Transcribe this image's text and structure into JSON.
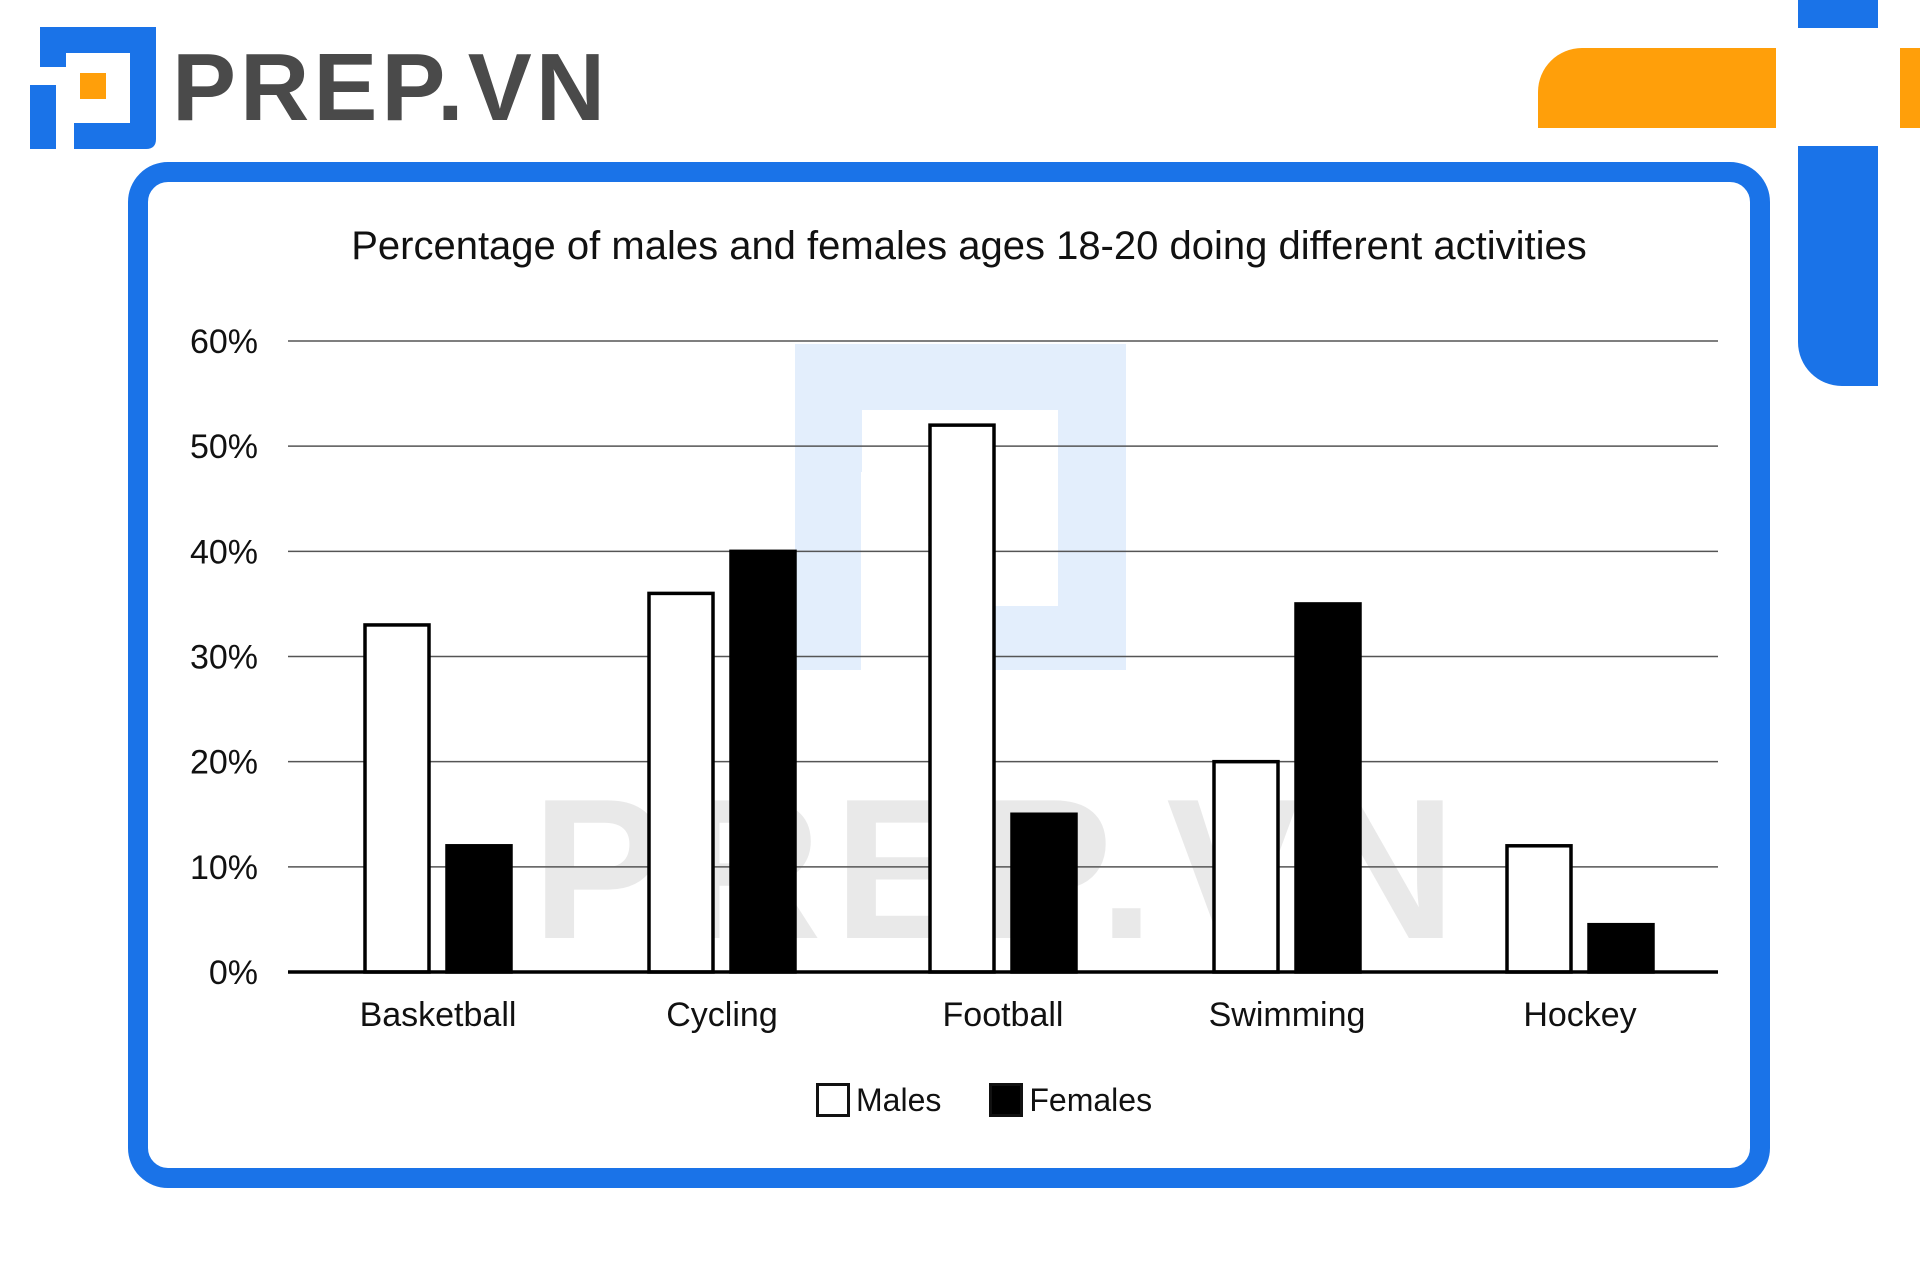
{
  "brand": {
    "name": "PREP.VN",
    "watermark": "PREP.VN"
  },
  "colors": {
    "accent_blue": "#1a73e8",
    "accent_orange": "#ff9f0a",
    "males_fill": "#ffffff",
    "females_fill": "#000000"
  },
  "chart_data": {
    "type": "bar",
    "title": "Percentage of males and females ages 18-20 doing different activities",
    "xlabel": "",
    "ylabel": "",
    "categories": [
      "Basketball",
      "Cycling",
      "Football",
      "Swimming",
      "Hockey"
    ],
    "series": [
      {
        "name": "Males",
        "values": [
          33,
          36,
          52,
          20,
          12
        ],
        "fill": "#ffffff"
      },
      {
        "name": "Females",
        "values": [
          12,
          40,
          15,
          35,
          4.5
        ],
        "fill": "#000000"
      }
    ],
    "ylim": [
      0,
      60
    ],
    "yticks": [
      0,
      10,
      20,
      30,
      40,
      50,
      60
    ],
    "ytick_labels": [
      "0%",
      "10%",
      "20%",
      "30%",
      "40%",
      "50%",
      "60%"
    ],
    "grid": true,
    "legend_position": "bottom-center"
  }
}
